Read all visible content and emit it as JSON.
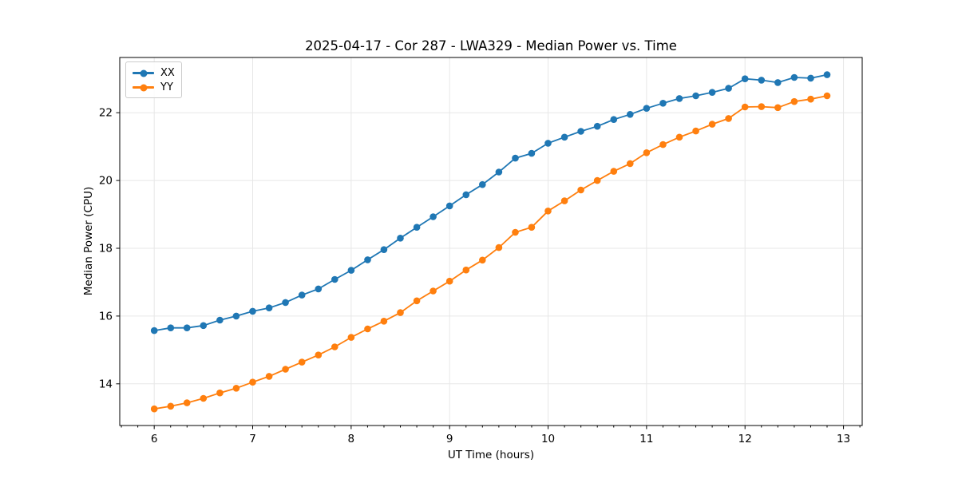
{
  "chart_data": {
    "type": "line",
    "title": "2025-04-17 - Cor 287 - LWA329 - Median Power vs. Time",
    "xlabel": "UT Time (hours)",
    "ylabel": "Median Power (CPU)",
    "xlim": [
      5.65,
      13.19
    ],
    "ylim": [
      12.77,
      23.63
    ],
    "xticks": [
      6,
      7,
      8,
      9,
      10,
      11,
      12,
      13
    ],
    "yticks": [
      14,
      16,
      18,
      20,
      22
    ],
    "x_minor_step": 0.1667,
    "grid": true,
    "grid_color": "#e7e7e7",
    "legend_position": "upper-left",
    "x": [
      6.0,
      6.167,
      6.333,
      6.5,
      6.667,
      6.833,
      7.0,
      7.167,
      7.333,
      7.5,
      7.667,
      7.833,
      8.0,
      8.167,
      8.333,
      8.5,
      8.667,
      8.833,
      9.0,
      9.167,
      9.333,
      9.5,
      9.667,
      9.833,
      10.0,
      10.167,
      10.333,
      10.5,
      10.667,
      10.833,
      11.0,
      11.167,
      11.333,
      11.5,
      11.667,
      11.833,
      12.0,
      12.167,
      12.333,
      12.5,
      12.667,
      12.833
    ],
    "series": [
      {
        "name": "XX",
        "color": "#1f77b4",
        "values": [
          15.57,
          15.65,
          15.65,
          15.72,
          15.88,
          16.0,
          16.14,
          16.24,
          16.4,
          16.62,
          16.8,
          17.08,
          17.35,
          17.66,
          17.96,
          18.3,
          18.62,
          18.93,
          19.25,
          19.58,
          19.88,
          20.25,
          20.66,
          20.8,
          21.1,
          21.28,
          21.45,
          21.6,
          21.8,
          21.95,
          22.13,
          22.28,
          22.42,
          22.5,
          22.6,
          22.72,
          23.0,
          22.96,
          22.89,
          23.04,
          23.02,
          23.12
        ]
      },
      {
        "name": "YY",
        "color": "#ff7f0e",
        "values": [
          13.26,
          13.34,
          13.44,
          13.57,
          13.73,
          13.87,
          14.05,
          14.22,
          14.43,
          14.64,
          14.85,
          15.09,
          15.37,
          15.62,
          15.85,
          16.1,
          16.45,
          16.74,
          17.03,
          17.36,
          17.65,
          18.02,
          18.47,
          18.62,
          19.1,
          19.4,
          19.72,
          20.0,
          20.27,
          20.5,
          20.82,
          21.06,
          21.28,
          21.46,
          21.66,
          21.83,
          22.17,
          22.18,
          22.15,
          22.33,
          22.4,
          22.5
        ]
      }
    ]
  }
}
